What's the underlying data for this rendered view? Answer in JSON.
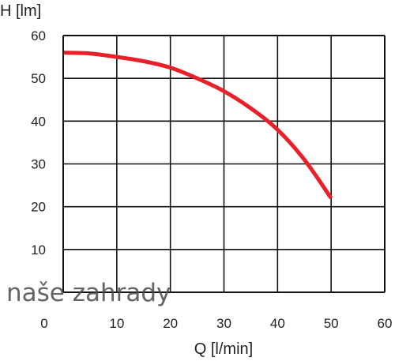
{
  "chart_data": {
    "type": "line",
    "title": "",
    "xlabel": "Q [l/min]",
    "ylabel": "H [lm]",
    "xlim": [
      0,
      60
    ],
    "ylim": [
      0,
      60
    ],
    "x_ticks": [
      0,
      10,
      20,
      30,
      40,
      50,
      60
    ],
    "x_tick_labels": [
      "0",
      "10",
      "20",
      "30",
      "40",
      "50",
      "60"
    ],
    "y_ticks": [
      10,
      20,
      30,
      40,
      50,
      60
    ],
    "y_tick_labels": [
      "10",
      "20",
      "30",
      "40",
      "50",
      "60"
    ],
    "grid": true,
    "legend": "none",
    "series": [
      {
        "color": "#e8202a",
        "x": [
          0,
          5,
          10,
          15,
          20,
          25,
          30,
          35,
          40,
          45,
          50
        ],
        "y": [
          56,
          55.8,
          55,
          54,
          52.5,
          50,
          47,
          43,
          38,
          31,
          22
        ]
      }
    ]
  },
  "watermark": "naše zahrady"
}
